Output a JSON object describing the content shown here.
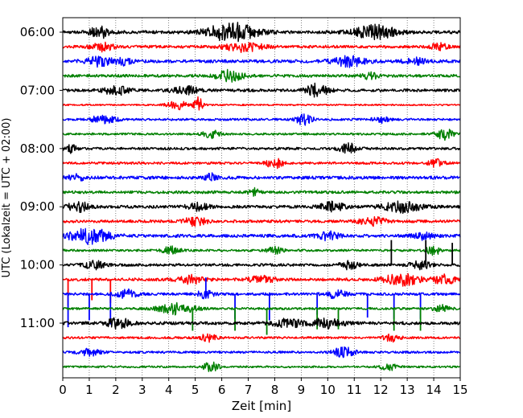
{
  "chart_data": {
    "type": "line",
    "xlabel": "Zeit  [min]",
    "ylabel": "UTC (Lokalzeit = UTC + 02:00)",
    "xlim": [
      0,
      15
    ],
    "x_ticks": [
      "0",
      "1",
      "2",
      "3",
      "4",
      "5",
      "6",
      "7",
      "8",
      "9",
      "10",
      "11",
      "12",
      "13",
      "14",
      "15"
    ],
    "y_tick_labels": [
      "06:00",
      "07:00",
      "08:00",
      "09:00",
      "10:00",
      "11:00"
    ],
    "grid": "vertical dotted lines at each minute",
    "colors": [
      "#000000",
      "#ff0000",
      "#0000ff",
      "#008000"
    ],
    "rows": [
      {
        "start": "06:00",
        "color": "#000000",
        "noise": 0.45,
        "events": [
          [
            1.4,
            0.35,
            2.2
          ],
          [
            6.4,
            0.9,
            3.2
          ],
          [
            11.8,
            0.8,
            2.4
          ]
        ],
        "spikes": []
      },
      {
        "start": "06:15",
        "color": "#ff0000",
        "noise": 0.4,
        "events": [
          [
            1.5,
            0.4,
            1.6
          ],
          [
            6.8,
            0.7,
            1.8
          ],
          [
            14.2,
            0.3,
            1.4
          ]
        ],
        "spikes": []
      },
      {
        "start": "06:30",
        "color": "#0000ff",
        "noise": 0.45,
        "events": [
          [
            1.4,
            0.5,
            1.8
          ],
          [
            2.3,
            0.3,
            1.4
          ],
          [
            10.8,
            0.6,
            2.0
          ],
          [
            13.3,
            0.4,
            1.4
          ]
        ],
        "spikes": []
      },
      {
        "start": "06:45",
        "color": "#008000",
        "noise": 0.4,
        "events": [
          [
            6.3,
            0.5,
            2.0
          ],
          [
            11.6,
            0.3,
            1.3
          ]
        ],
        "spikes": []
      },
      {
        "start": "07:00",
        "color": "#000000",
        "noise": 0.4,
        "events": [
          [
            2.0,
            0.5,
            1.8
          ],
          [
            4.6,
            0.5,
            1.6
          ],
          [
            9.6,
            0.4,
            2.4
          ]
        ],
        "spikes": []
      },
      {
        "start": "07:15",
        "color": "#ff0000",
        "noise": 0.22,
        "events": [
          [
            4.3,
            0.35,
            1.6
          ],
          [
            5.1,
            0.2,
            2.4
          ]
        ],
        "spikes": []
      },
      {
        "start": "07:30",
        "color": "#0000ff",
        "noise": 0.32,
        "events": [
          [
            1.5,
            0.5,
            1.4
          ],
          [
            9.1,
            0.3,
            2.0
          ],
          [
            12.0,
            0.3,
            1.2
          ]
        ],
        "spikes": []
      },
      {
        "start": "07:45",
        "color": "#008000",
        "noise": 0.3,
        "events": [
          [
            5.6,
            0.3,
            1.5
          ],
          [
            14.4,
            0.3,
            2.0
          ]
        ],
        "spikes": []
      },
      {
        "start": "08:00",
        "color": "#000000",
        "noise": 0.35,
        "events": [
          [
            0.3,
            0.2,
            1.6
          ],
          [
            10.8,
            0.35,
            1.8
          ]
        ],
        "spikes": []
      },
      {
        "start": "08:15",
        "color": "#ff0000",
        "noise": 0.35,
        "events": [
          [
            8.0,
            0.3,
            1.8
          ],
          [
            14.1,
            0.3,
            1.6
          ]
        ],
        "spikes": []
      },
      {
        "start": "08:30",
        "color": "#0000ff",
        "noise": 0.45,
        "events": [
          [
            0.5,
            0.3,
            1.4
          ],
          [
            5.6,
            0.2,
            1.6
          ]
        ],
        "spikes": []
      },
      {
        "start": "08:45",
        "color": "#008000",
        "noise": 0.4,
        "events": [
          [
            7.2,
            0.2,
            1.4
          ]
        ],
        "spikes": []
      },
      {
        "start": "09:00",
        "color": "#000000",
        "noise": 0.42,
        "events": [
          [
            0.6,
            0.4,
            1.8
          ],
          [
            5.1,
            0.4,
            1.5
          ],
          [
            10.2,
            0.5,
            1.7
          ],
          [
            12.8,
            0.7,
            2.0
          ]
        ],
        "spikes": []
      },
      {
        "start": "09:15",
        "color": "#ff0000",
        "noise": 0.4,
        "events": [
          [
            5.0,
            0.4,
            1.7
          ],
          [
            11.7,
            0.5,
            1.5
          ]
        ],
        "spikes": []
      },
      {
        "start": "09:30",
        "color": "#0000ff",
        "noise": 0.45,
        "events": [
          [
            1.0,
            0.8,
            2.6
          ],
          [
            10.0,
            0.4,
            1.6
          ],
          [
            13.6,
            0.4,
            1.4
          ]
        ],
        "spikes": []
      },
      {
        "start": "09:45",
        "color": "#008000",
        "noise": 0.32,
        "events": [
          [
            4.1,
            0.3,
            1.5
          ],
          [
            8.0,
            0.3,
            1.3
          ],
          [
            14.0,
            0.3,
            1.5
          ]
        ],
        "spikes": []
      },
      {
        "start": "10:00",
        "color": "#000000",
        "noise": 0.38,
        "events": [
          [
            1.2,
            0.4,
            1.5
          ],
          [
            10.8,
            0.3,
            1.7
          ],
          [
            13.5,
            0.4,
            1.5
          ]
        ],
        "spikes": [
          [
            12.4,
            -1.8
          ],
          [
            13.7,
            -1.8
          ],
          [
            14.7,
            -1.6
          ]
        ]
      },
      {
        "start": "10:15",
        "color": "#ff0000",
        "noise": 0.42,
        "events": [
          [
            4.8,
            0.5,
            1.6
          ],
          [
            7.5,
            0.5,
            1.3
          ],
          [
            12.8,
            0.7,
            2.0
          ],
          [
            14.4,
            0.4,
            1.8
          ]
        ],
        "spikes": [
          [
            0.2,
            1.9
          ],
          [
            1.1,
            1.5
          ],
          [
            1.8,
            1.7
          ]
        ]
      },
      {
        "start": "10:30",
        "color": "#0000ff",
        "noise": 0.38,
        "events": [
          [
            2.4,
            0.4,
            1.6
          ],
          [
            5.4,
            0.3,
            1.6
          ],
          [
            10.3,
            0.4,
            1.5
          ]
        ],
        "spikes": [
          [
            0.2,
            2.4
          ],
          [
            1.0,
            1.9
          ],
          [
            1.8,
            2.2
          ],
          [
            5.4,
            -1.2
          ],
          [
            6.5,
            1.8
          ],
          [
            7.8,
            1.9
          ],
          [
            9.6,
            1.5
          ],
          [
            11.5,
            1.7
          ],
          [
            12.5,
            1.8
          ],
          [
            13.5,
            1.8
          ]
        ]
      },
      {
        "start": "10:45",
        "color": "#008000",
        "noise": 0.32,
        "events": [
          [
            4.3,
            0.7,
            2.0
          ],
          [
            14.3,
            0.3,
            1.4
          ]
        ],
        "spikes": [
          [
            4.9,
            1.6
          ],
          [
            6.5,
            1.6
          ],
          [
            7.7,
            1.9
          ],
          [
            9.6,
            1.5
          ],
          [
            10.4,
            1.5
          ],
          [
            12.5,
            1.6
          ],
          [
            13.5,
            1.6
          ]
        ]
      },
      {
        "start": "11:00",
        "color": "#000000",
        "noise": 0.45,
        "events": [
          [
            2.1,
            0.4,
            2.0
          ],
          [
            8.5,
            0.6,
            1.6
          ],
          [
            10.0,
            0.6,
            1.8
          ]
        ],
        "spikes": []
      },
      {
        "start": "11:15",
        "color": "#ff0000",
        "noise": 0.32,
        "events": [
          [
            5.5,
            0.3,
            1.4
          ],
          [
            12.4,
            0.3,
            1.4
          ]
        ],
        "spikes": []
      },
      {
        "start": "11:30",
        "color": "#0000ff",
        "noise": 0.32,
        "events": [
          [
            1.0,
            0.4,
            1.4
          ],
          [
            10.6,
            0.4,
            1.8
          ]
        ],
        "spikes": []
      },
      {
        "start": "11:45",
        "color": "#008000",
        "noise": 0.28,
        "events": [
          [
            5.6,
            0.3,
            1.6
          ],
          [
            12.3,
            0.3,
            1.3
          ]
        ],
        "spikes": []
      }
    ]
  }
}
